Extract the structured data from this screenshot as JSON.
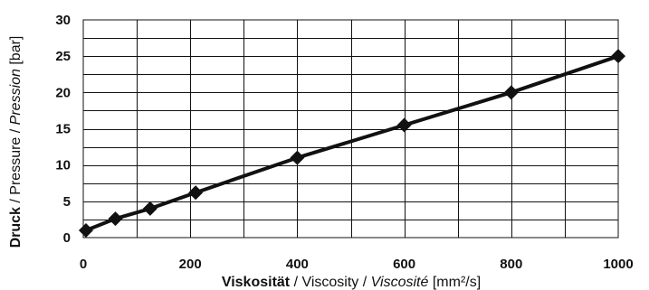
{
  "chart_data": {
    "type": "line",
    "xlabel": {
      "part1": "Viskosität",
      "sep1": " / ",
      "part2": "Viscosity",
      "sep2": " / ",
      "part3": "Viscosité",
      "unit": " [mm²/s]"
    },
    "ylabel": {
      "part1": "Druck",
      "sep1": " / ",
      "part2": "Pressure",
      "sep2": " / ",
      "part3": "Pression",
      "unit": " [bar]"
    },
    "xlim": [
      0,
      1000
    ],
    "ylim": [
      0,
      30
    ],
    "x_ticks": [
      0,
      200,
      400,
      600,
      800,
      1000
    ],
    "y_ticks": [
      0,
      5,
      10,
      15,
      20,
      25,
      30
    ],
    "x_grid_step": 100,
    "y_grid_step": 2.5,
    "grid": true,
    "line_color": "#111111",
    "marker": "diamond",
    "series": [
      {
        "x": [
          5,
          60,
          125,
          210,
          400,
          600,
          800,
          1000
        ],
        "y": [
          1,
          2.6,
          4,
          6.2,
          11,
          15.5,
          20,
          25
        ]
      }
    ]
  }
}
